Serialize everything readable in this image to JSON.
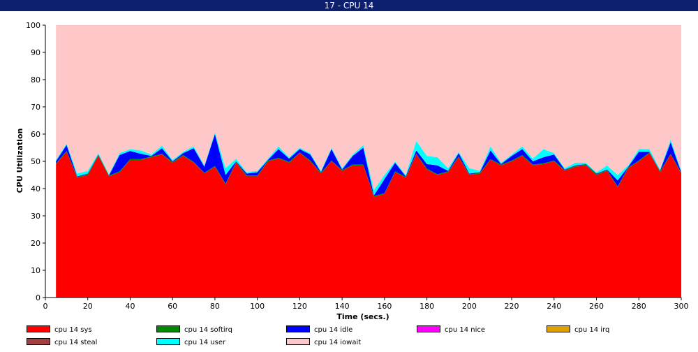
{
  "window": {
    "title": "17 - CPU 14"
  },
  "chart_data": {
    "type": "area",
    "stacked": true,
    "xlabel": "Time (secs.)",
    "ylabel": "CPU Utilization",
    "xlim": [
      0,
      300
    ],
    "ylim": [
      0,
      100
    ],
    "xticks": [
      0,
      20,
      40,
      60,
      80,
      100,
      120,
      140,
      160,
      180,
      200,
      220,
      240,
      260,
      280,
      300
    ],
    "yticks": [
      0,
      10,
      20,
      30,
      40,
      50,
      60,
      70,
      80,
      90,
      100
    ],
    "grid": false,
    "legend_position": "bottom",
    "x": [
      5,
      10,
      15,
      20,
      25,
      30,
      35,
      40,
      45,
      50,
      55,
      60,
      65,
      70,
      75,
      80,
      85,
      90,
      95,
      100,
      105,
      110,
      115,
      120,
      125,
      130,
      135,
      140,
      145,
      150,
      155,
      160,
      165,
      170,
      175,
      180,
      185,
      190,
      195,
      200,
      205,
      210,
      215,
      220,
      225,
      230,
      235,
      240,
      245,
      250,
      255,
      260,
      265,
      270,
      275,
      280,
      285,
      290,
      295,
      300
    ],
    "series": [
      {
        "name": "cpu 14 sys",
        "color": "#ff0000",
        "values": [
          49,
          53.5,
          44,
          45,
          52,
          44.5,
          46,
          50.5,
          50.5,
          51.5,
          52.5,
          49.5,
          52,
          49.5,
          45.5,
          48,
          41.5,
          49.5,
          44.5,
          44.5,
          50,
          51,
          49.5,
          53,
          50,
          45.5,
          50,
          46.5,
          48.5,
          48.5,
          37,
          38,
          46,
          44,
          52.5,
          47,
          45,
          46,
          51.5,
          45,
          45.5,
          50.5,
          48.5,
          50,
          52,
          48.5,
          49,
          50,
          46.5,
          48,
          48.5,
          45,
          46.5,
          40.5,
          47.5,
          50,
          53,
          46,
          52.5,
          45.5
        ]
      },
      {
        "name": "cpu 14 softirq",
        "color": "#008800",
        "values": [
          0.3,
          0.3,
          0.3,
          0.3,
          0.3,
          0.3,
          0.3,
          0.3,
          0.3,
          0.3,
          0.3,
          0.3,
          0.3,
          0.3,
          0.3,
          0.3,
          0.3,
          0.3,
          0.3,
          0.3,
          0.3,
          0.3,
          0.3,
          0.3,
          0.3,
          0.3,
          0.3,
          0.3,
          0.3,
          0.3,
          0.3,
          0.3,
          0.3,
          0.3,
          0.3,
          0.3,
          0.3,
          0.3,
          0.3,
          0.3,
          0.3,
          0.3,
          0.3,
          0.3,
          0.3,
          0.3,
          0.3,
          0.3,
          0.3,
          0.3,
          0.3,
          0.3,
          0.3,
          0.3,
          0.3,
          0.3,
          0.3,
          0.3,
          0.3,
          0.3
        ]
      },
      {
        "name": "cpu 14 idle",
        "color": "#0000ff",
        "values": [
          0.7,
          2.2,
          0.2,
          0.2,
          0.2,
          0,
          6,
          3,
          2,
          0.2,
          2,
          0.2,
          0.7,
          5,
          2.2,
          11.7,
          3.2,
          0.2,
          0.7,
          1.2,
          0.2,
          3.2,
          1.2,
          1.2,
          2.2,
          0.2,
          4.2,
          0.2,
          3.2,
          6.2,
          0.2,
          5.2,
          3.2,
          0.2,
          1.2,
          1.7,
          3.2,
          0.2,
          1.2,
          0.2,
          0.2,
          3.2,
          0.2,
          1.7,
          2.2,
          1.2,
          2.2,
          2.2,
          0.2,
          0.2,
          0.2,
          0.2,
          0.2,
          2.2,
          0.2,
          3.2,
          0.2,
          0.2,
          4.2,
          0.2
        ]
      },
      {
        "name": "cpu 14 nice",
        "color": "#ff00ff",
        "values": [
          0,
          0,
          0,
          0,
          0,
          0,
          0,
          0,
          0,
          0,
          0,
          0,
          0,
          0,
          0,
          0,
          0,
          0,
          0,
          0,
          0,
          0,
          0,
          0,
          0,
          0,
          0,
          0,
          0,
          0,
          0,
          0,
          0,
          0,
          0,
          0,
          0,
          0,
          0,
          0,
          0,
          0,
          0,
          0,
          0,
          0,
          0,
          0,
          0,
          0,
          0,
          0,
          0,
          0,
          0,
          0,
          0,
          0,
          0,
          0
        ]
      },
      {
        "name": "cpu 14 irq",
        "color": "#e0a000",
        "values": [
          0,
          0,
          0,
          0,
          0,
          0,
          0,
          0,
          0,
          0,
          0,
          0,
          0,
          0,
          0,
          0,
          0,
          0,
          0,
          0,
          0,
          0,
          0,
          0,
          0,
          0,
          0,
          0,
          0,
          0,
          0,
          0,
          0,
          0,
          0,
          0,
          0,
          0,
          0,
          0,
          0,
          0,
          0,
          0,
          0,
          0,
          0,
          0,
          0,
          0,
          0,
          0,
          0,
          0,
          0,
          0,
          0,
          0,
          0,
          0
        ]
      },
      {
        "name": "cpu 14 steal",
        "color": "#a04040",
        "values": [
          0,
          0,
          0,
          0,
          0,
          0,
          0,
          0,
          0,
          0,
          0,
          0,
          0,
          0,
          0,
          0,
          0,
          0,
          0,
          0,
          0,
          0,
          0,
          0,
          0,
          0,
          0,
          0,
          0,
          0,
          0,
          0,
          0,
          0,
          0,
          0,
          0,
          0,
          0,
          0,
          0,
          0,
          0,
          0,
          0,
          0,
          0,
          0,
          0,
          0,
          0,
          0,
          0,
          0,
          0,
          0,
          0,
          0,
          0,
          0
        ]
      },
      {
        "name": "cpu 14 user",
        "color": "#00ffff",
        "values": [
          0.5,
          0.5,
          1,
          1,
          0.5,
          0.5,
          0.7,
          0.7,
          1.2,
          0.5,
          1,
          0.5,
          0.5,
          0.7,
          0.5,
          0.7,
          2.5,
          1,
          0.5,
          0.5,
          0.5,
          1,
          0.5,
          0.5,
          0.5,
          0.5,
          0.5,
          0.5,
          0.5,
          1,
          2,
          1.5,
          0.5,
          0.5,
          3.5,
          3,
          3,
          1,
          0.5,
          2,
          0.5,
          1.5,
          0.5,
          0.5,
          1,
          1,
          3,
          0.5,
          0.5,
          1,
          0.5,
          0.5,
          1.5,
          2,
          0.5,
          1,
          1,
          0.5,
          1,
          0.5
        ]
      },
      {
        "name": "cpu 14 iowait",
        "color": "#ffc8c8",
        "values": [
          49.5,
          43.5,
          54.5,
          53.5,
          47,
          54.7,
          47,
          45.5,
          46,
          47.5,
          44.2,
          49.5,
          46.5,
          44.5,
          51.5,
          39.3,
          52.5,
          49,
          54,
          53.5,
          49,
          44.5,
          48.5,
          45,
          47,
          53.5,
          45,
          52.5,
          47.5,
          44,
          60.5,
          55,
          50,
          55,
          42.5,
          48,
          48.5,
          52.5,
          46.5,
          52.5,
          53.5,
          44.5,
          50.5,
          47.5,
          44.5,
          49,
          45.5,
          47,
          52.5,
          50.5,
          50.5,
          54,
          51.5,
          55,
          51.5,
          45.5,
          45.5,
          53,
          42,
          53.5
        ]
      }
    ]
  }
}
